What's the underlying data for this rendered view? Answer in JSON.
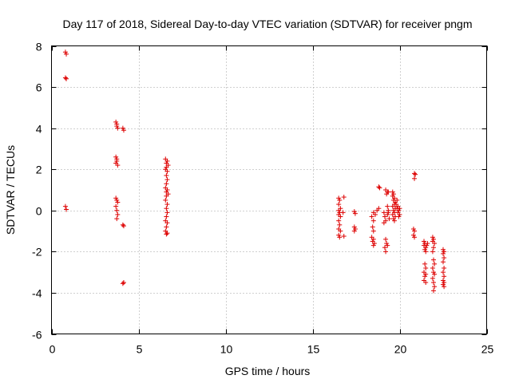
{
  "chart_data": {
    "type": "scatter",
    "title": "Day 117 of 2018, Sidereal Day-to-day VTEC variation (SDTVAR) for receiver pngm",
    "xlabel": "GPS time / hours",
    "ylabel": "SDTVAR / TECUs",
    "xlim": [
      0,
      25
    ],
    "ylim": [
      -6,
      8
    ],
    "xticks": [
      0,
      5,
      10,
      15,
      20,
      25
    ],
    "yticks": [
      -6,
      -4,
      -2,
      0,
      2,
      4,
      6,
      8
    ],
    "grid": true,
    "marker": "plus",
    "color": "#dd0000",
    "series": [
      {
        "name": "SDTVAR",
        "points": [
          [
            0.8,
            7.7
          ],
          [
            0.85,
            7.6
          ],
          [
            0.8,
            6.45
          ],
          [
            0.85,
            6.4
          ],
          [
            0.8,
            0.2
          ],
          [
            0.85,
            0.05
          ],
          [
            3.7,
            4.3
          ],
          [
            3.75,
            4.1
          ],
          [
            3.8,
            4.0
          ],
          [
            3.75,
            4.2
          ],
          [
            3.7,
            2.6
          ],
          [
            3.75,
            2.4
          ],
          [
            3.7,
            2.3
          ],
          [
            3.8,
            2.2
          ],
          [
            3.75,
            2.5
          ],
          [
            3.7,
            0.6
          ],
          [
            3.75,
            0.5
          ],
          [
            3.8,
            0.4
          ],
          [
            3.7,
            0.2
          ],
          [
            3.75,
            0.0
          ],
          [
            3.8,
            -0.2
          ],
          [
            3.75,
            -0.4
          ],
          [
            4.1,
            4.0
          ],
          [
            4.15,
            3.9
          ],
          [
            4.1,
            -0.7
          ],
          [
            4.15,
            -0.75
          ],
          [
            4.15,
            -3.5
          ],
          [
            4.1,
            -3.55
          ],
          [
            6.55,
            2.5
          ],
          [
            6.65,
            2.4
          ],
          [
            6.6,
            2.3
          ],
          [
            6.7,
            2.2
          ],
          [
            6.6,
            2.1
          ],
          [
            6.55,
            2.0
          ],
          [
            6.65,
            1.9
          ],
          [
            6.6,
            1.7
          ],
          [
            6.65,
            1.5
          ],
          [
            6.6,
            1.3
          ],
          [
            6.55,
            1.1
          ],
          [
            6.65,
            1.0
          ],
          [
            6.6,
            0.9
          ],
          [
            6.7,
            0.8
          ],
          [
            6.6,
            0.7
          ],
          [
            6.55,
            0.5
          ],
          [
            6.65,
            0.3
          ],
          [
            6.6,
            0.1
          ],
          [
            6.65,
            -0.1
          ],
          [
            6.6,
            -0.3
          ],
          [
            6.55,
            -0.5
          ],
          [
            6.65,
            -0.6
          ],
          [
            6.6,
            -0.8
          ],
          [
            6.55,
            -1.0
          ],
          [
            6.65,
            -1.1
          ],
          [
            6.6,
            -1.15
          ],
          [
            16.5,
            0.6
          ],
          [
            16.55,
            0.5
          ],
          [
            16.5,
            0.3
          ],
          [
            16.6,
            0.1
          ],
          [
            16.5,
            0.0
          ],
          [
            16.55,
            -0.1
          ],
          [
            16.5,
            -0.2
          ],
          [
            16.6,
            -0.3
          ],
          [
            16.5,
            -0.5
          ],
          [
            16.55,
            -0.7
          ],
          [
            16.5,
            -0.9
          ],
          [
            16.6,
            -1.0
          ],
          [
            16.5,
            -1.2
          ],
          [
            16.55,
            -1.3
          ],
          [
            16.8,
            0.65
          ],
          [
            16.75,
            -0.1
          ],
          [
            16.8,
            -1.25
          ],
          [
            17.4,
            -0.05
          ],
          [
            17.45,
            -0.15
          ],
          [
            17.4,
            -0.8
          ],
          [
            17.45,
            -0.9
          ],
          [
            17.4,
            -1.0
          ],
          [
            18.4,
            -0.3
          ],
          [
            18.5,
            -0.5
          ],
          [
            18.45,
            -0.8
          ],
          [
            18.5,
            -1.0
          ],
          [
            18.4,
            -1.3
          ],
          [
            18.5,
            -1.4
          ],
          [
            18.45,
            -1.5
          ],
          [
            18.55,
            -1.6
          ],
          [
            18.5,
            -1.7
          ],
          [
            18.5,
            -0.1
          ],
          [
            18.6,
            -0.2
          ],
          [
            18.8,
            1.15
          ],
          [
            18.85,
            1.1
          ],
          [
            18.7,
            0.0
          ],
          [
            18.8,
            0.1
          ],
          [
            19.1,
            -0.1
          ],
          [
            19.15,
            -0.3
          ],
          [
            19.2,
            -0.5
          ],
          [
            19.1,
            -0.6
          ],
          [
            19.2,
            -1.4
          ],
          [
            19.25,
            -1.6
          ],
          [
            19.3,
            -1.7
          ],
          [
            19.2,
            -2.0
          ],
          [
            19.15,
            -1.8
          ],
          [
            19.2,
            1.0
          ],
          [
            19.3,
            0.9
          ],
          [
            19.25,
            0.8
          ],
          [
            19.35,
            0.9
          ],
          [
            19.3,
            0.2
          ],
          [
            19.35,
            0.0
          ],
          [
            19.3,
            -0.2
          ],
          [
            19.4,
            -0.4
          ],
          [
            19.35,
            -0.1
          ],
          [
            19.6,
            0.9
          ],
          [
            19.65,
            0.8
          ],
          [
            19.6,
            0.7
          ],
          [
            19.7,
            0.6
          ],
          [
            19.65,
            0.5
          ],
          [
            19.75,
            0.4
          ],
          [
            19.7,
            0.3
          ],
          [
            19.6,
            0.2
          ],
          [
            19.75,
            0.1
          ],
          [
            19.65,
            0.0
          ],
          [
            19.7,
            -0.1
          ],
          [
            19.6,
            -0.2
          ],
          [
            19.75,
            -0.3
          ],
          [
            19.65,
            -0.4
          ],
          [
            19.7,
            -0.5
          ],
          [
            19.8,
            0.3
          ],
          [
            19.9,
            0.2
          ],
          [
            19.85,
            0.1
          ],
          [
            19.95,
            0.0
          ],
          [
            19.9,
            -0.1
          ],
          [
            20.0,
            -0.2
          ],
          [
            19.95,
            -0.3
          ],
          [
            20.0,
            0.1
          ],
          [
            19.85,
            0.5
          ],
          [
            20.85,
            1.8
          ],
          [
            20.9,
            1.75
          ],
          [
            20.85,
            1.55
          ],
          [
            20.8,
            -0.9
          ],
          [
            20.85,
            -1.0
          ],
          [
            20.8,
            -1.2
          ],
          [
            20.85,
            -1.3
          ],
          [
            21.4,
            -1.5
          ],
          [
            21.45,
            -1.6
          ],
          [
            21.4,
            -1.7
          ],
          [
            21.5,
            -1.8
          ],
          [
            21.45,
            -1.9
          ],
          [
            21.5,
            -2.0
          ],
          [
            21.45,
            -2.6
          ],
          [
            21.5,
            -2.8
          ],
          [
            21.4,
            -3.0
          ],
          [
            21.5,
            -3.1
          ],
          [
            21.45,
            -3.2
          ],
          [
            21.4,
            -3.4
          ],
          [
            21.5,
            -3.5
          ],
          [
            21.6,
            -1.6
          ],
          [
            21.55,
            -1.7
          ],
          [
            21.9,
            -1.3
          ],
          [
            21.95,
            -1.4
          ],
          [
            21.9,
            -1.5
          ],
          [
            22.0,
            -1.6
          ],
          [
            21.95,
            -1.8
          ],
          [
            21.9,
            -2.0
          ],
          [
            21.95,
            -2.4
          ],
          [
            22.0,
            -2.6
          ],
          [
            21.9,
            -2.8
          ],
          [
            21.95,
            -3.0
          ],
          [
            22.0,
            -3.1
          ],
          [
            21.9,
            -3.3
          ],
          [
            21.95,
            -3.5
          ],
          [
            22.0,
            -3.7
          ],
          [
            21.95,
            -3.9
          ],
          [
            22.5,
            -1.9
          ],
          [
            22.55,
            -2.0
          ],
          [
            22.5,
            -2.1
          ],
          [
            22.55,
            -2.3
          ],
          [
            22.5,
            -2.5
          ],
          [
            22.55,
            -2.8
          ],
          [
            22.5,
            -3.0
          ],
          [
            22.55,
            -3.2
          ],
          [
            22.5,
            -3.4
          ],
          [
            22.55,
            -3.5
          ],
          [
            22.5,
            -3.6
          ],
          [
            22.55,
            -3.7
          ]
        ]
      }
    ]
  }
}
